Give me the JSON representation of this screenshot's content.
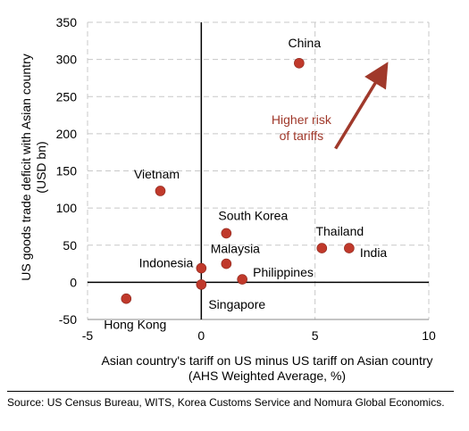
{
  "chart_data": {
    "type": "scatter",
    "title": "",
    "xlabel_lines": [
      "Asian country's tariff on US minus US tariff on Asian country",
      "(AHS Weighted Average, %)"
    ],
    "ylabel_lines": [
      "US goods trade deficit with Asian country",
      "(USD bn)"
    ],
    "xlim": [
      -5,
      10
    ],
    "ylim": [
      -50,
      350
    ],
    "x_ticks": [
      -5,
      0,
      5,
      10
    ],
    "y_ticks": [
      -50,
      0,
      50,
      100,
      150,
      200,
      250,
      300,
      350
    ],
    "grid": "dashed",
    "point_color": "#c0392b",
    "accent_color": "#a0392b",
    "points": [
      {
        "label": "China",
        "x": 4.3,
        "y": 295
      },
      {
        "label": "Vietnam",
        "x": -1.8,
        "y": 123
      },
      {
        "label": "South Korea",
        "x": 1.1,
        "y": 66
      },
      {
        "label": "Thailand",
        "x": 5.3,
        "y": 46
      },
      {
        "label": "India",
        "x": 6.5,
        "y": 46
      },
      {
        "label": "Malaysia",
        "x": 1.1,
        "y": 25
      },
      {
        "label": "Indonesia",
        "x": 0.0,
        "y": 19
      },
      {
        "label": "Philippines",
        "x": 1.8,
        "y": 4
      },
      {
        "label": "Singapore",
        "x": 0.0,
        "y": -3
      },
      {
        "label": "Hong Kong",
        "x": -3.3,
        "y": -22
      }
    ],
    "annotation": {
      "lines": [
        "Higher risk",
        "of tariffs"
      ]
    }
  },
  "source": "Source: US Census Bureau, WITS, Korea Customs Service and Nomura Global Economics."
}
